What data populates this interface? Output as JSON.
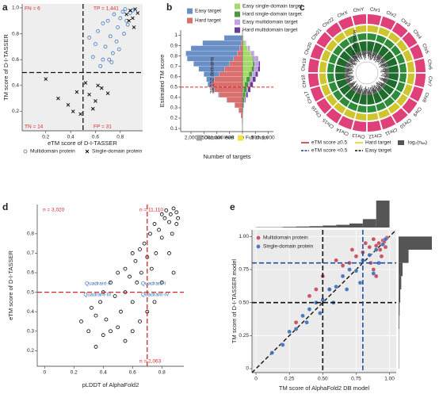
{
  "chart_data": [
    {
      "type": "scatter",
      "panel_label": "a",
      "x_label": "eTM score of D-I-TASSER",
      "y_label": "TM score of D-I-TASSER",
      "xlim": [
        0.01,
        0.98
      ],
      "ylim": [
        0.05,
        1.03
      ],
      "xticks": [
        0.2,
        0.4,
        0.6,
        0.8
      ],
      "yticks": [
        0.2,
        0.4,
        0.6,
        0.8,
        {
          "value": 1,
          "label": "1.0"
        }
      ],
      "background": "#eeeeee",
      "vlines": [
        0.5
      ],
      "hlines": [
        0.5
      ],
      "ref_color": "#111111",
      "annotations": [
        {
          "text": "FN = 6",
          "color": "#d62728"
        },
        {
          "text": "TP = 1,441",
          "color": "#d62728"
        },
        {
          "text": "TN = 14",
          "color": "#d62728"
        },
        {
          "text": "FP = 31",
          "color": "#d62728"
        }
      ],
      "series": [
        {
          "name": "Multidomain protein",
          "color": "#3b78c4",
          "marker": "circle",
          "x": [
            0.62,
            0.66,
            0.7,
            0.72,
            0.75,
            0.78,
            0.8,
            0.82,
            0.85,
            0.88,
            0.9,
            0.68,
            0.74,
            0.77,
            0.83,
            0.86,
            0.58,
            0.64,
            0.71,
            0.79,
            0.55,
            0.6,
            0.66,
            0.73,
            0.84
          ],
          "y": [
            0.82,
            0.88,
            0.9,
            0.78,
            0.95,
            0.85,
            0.92,
            0.97,
            0.9,
            0.96,
            0.98,
            0.7,
            0.65,
            0.74,
            0.8,
            0.87,
            0.62,
            0.55,
            0.6,
            0.68,
            0.77,
            0.72,
            0.6,
            0.58,
            0.99
          ]
        },
        {
          "name": "Single-domain protein",
          "color": "#000000",
          "marker": "cross",
          "x": [
            0.85,
            0.88,
            0.9,
            0.92,
            0.94,
            0.87,
            0.91,
            0.3,
            0.38,
            0.45,
            0.42,
            0.55,
            0.6,
            0.52,
            0.65,
            0.2,
            0.48,
            0.58,
            0.62,
            0.7
          ],
          "y": [
            0.95,
            0.98,
            0.92,
            0.99,
            0.96,
            0.9,
            0.85,
            0.3,
            0.25,
            0.35,
            0.2,
            0.33,
            0.28,
            0.42,
            0.38,
            0.45,
            0.18,
            0.22,
            0.4,
            0.34
          ]
        }
      ]
    },
    {
      "type": "pyramid",
      "panel_label": "b",
      "x_label": "Number of targets",
      "y_label": "Estimated TM score",
      "xlim": [
        -2400,
        1200
      ],
      "ylim": [
        0.07,
        1.05
      ],
      "xticks": [
        {
          "value": -2000,
          "label": "2,000"
        },
        {
          "value": -1500,
          "label": "1,500"
        },
        {
          "value": -1000,
          "label": "1,000"
        },
        {
          "value": -500,
          "label": "500"
        },
        0,
        500,
        {
          "value": 1000,
          "label": "1,000"
        }
      ],
      "yticks": [
        0.1,
        0.2,
        0.3,
        0.4,
        0.5,
        0.6,
        0.7,
        0.8,
        0.9,
        1
      ],
      "hlines": [
        0.5
      ],
      "ref_color": "#d62728",
      "annotations": [
        {
          "text": "28,152 domains",
          "color": "#222222"
        }
      ],
      "bins": [
        0.1,
        0.15,
        0.2,
        0.25,
        0.3,
        0.35,
        0.4,
        0.45,
        0.5,
        0.55,
        0.6,
        0.65,
        0.7,
        0.75,
        0.8,
        0.85,
        0.9,
        0.95,
        1.0
      ],
      "left_series": [
        {
          "name": "Hard target",
          "color": "#d9706e",
          "values": [
            5,
            20,
            60,
            150,
            300,
            600,
            900,
            1100,
            1200,
            1100,
            900,
            700,
            500,
            350,
            200,
            100,
            50,
            10
          ]
        },
        {
          "name": "Easy target",
          "color": "#6a8fc7",
          "values": [
            0,
            0,
            0,
            5,
            10,
            20,
            40,
            80,
            150,
            300,
            600,
            1000,
            1400,
            1800,
            2000,
            1900,
            1500,
            700
          ]
        }
      ],
      "right_series": [
        {
          "name": "Easy single-domain target",
          "color": "#a6d96a",
          "values": [
            0,
            0,
            0,
            0,
            5,
            10,
            20,
            40,
            80,
            150,
            250,
            350,
            400,
            380,
            300,
            200,
            100,
            30
          ]
        },
        {
          "name": "Hard single-domain target",
          "color": "#4a9a3c",
          "values": [
            0,
            2,
            5,
            15,
            30,
            60,
            100,
            130,
            150,
            150,
            130,
            100,
            70,
            40,
            20,
            10,
            5,
            0
          ]
        },
        {
          "name": "Easy multidomain target",
          "color": "#c2a5e0",
          "values": [
            0,
            0,
            0,
            2,
            5,
            10,
            20,
            40,
            60,
            90,
            120,
            150,
            160,
            150,
            120,
            80,
            40,
            10
          ]
        },
        {
          "name": "Hard multidomain target",
          "color": "#6a3d9a",
          "values": [
            0,
            1,
            3,
            10,
            20,
            40,
            70,
            100,
            120,
            120,
            100,
            80,
            50,
            30,
            15,
            5,
            2,
            0
          ]
        }
      ],
      "outline_legend": [
        {
          "name": "Domain level",
          "color": "#a0a0a0"
        },
        {
          "name": "Full chain",
          "color": "#f3e24a"
        }
      ]
    },
    {
      "type": "circos",
      "panel_label": "c",
      "labels": [
        "Chr1",
        "Chr2",
        "Chr3",
        "Chr4",
        "Chr5",
        "Chr6",
        "Chr7",
        "Chr8",
        "Chr9",
        "Chr10",
        "Chr11",
        "Chr12",
        "Chr13",
        "Chr14",
        "Chr15",
        "Chr16",
        "Chr17",
        "Chr18",
        "Chr19",
        "Chr20",
        "Chr21",
        "Chr22",
        "ChrX",
        "ChrY"
      ],
      "annotations": [
        {
          "text": "14,195 proteins",
          "color": "#222222"
        }
      ],
      "legend": [
        {
          "name": "eTM score ≥0.5",
          "color": "#d7263d",
          "style": "line"
        },
        {
          "name": "eTM score <0.5",
          "color": "#1f3a93",
          "style": "dash"
        },
        {
          "name": "Hard target",
          "color": "#e6d21e",
          "style": "line"
        },
        {
          "name": "Easy target",
          "color": "#111111",
          "style": "dash"
        },
        {
          "name": "log₂(nₐₐ)",
          "color": "#555555",
          "style": "box"
        }
      ]
    },
    {
      "type": "scatter",
      "panel_label": "d",
      "x_label": "pLDDT of AlphaFold2",
      "y_label": "eTM score of D-I-TASSER",
      "xlim": [
        -0.05,
        0.95
      ],
      "ylim": [
        0.12,
        0.95
      ],
      "xticks": [
        0,
        0.2,
        0.4,
        0.6,
        0.8
      ],
      "yticks": [
        0.2,
        0.3,
        0.4,
        0.5,
        0.6,
        0.7,
        0.8
      ],
      "vlines": [
        0.7
      ],
      "hlines": [
        0.5
      ],
      "ref_color": "#d62728",
      "color": "#000000",
      "marker": "circle",
      "annotations": [
        {
          "text": "n = 3,020",
          "color": "#d62728"
        },
        {
          "text": "n = 11,110",
          "color": "#d62728"
        },
        {
          "text": "n = 2,063",
          "color": "#d62728"
        },
        {
          "text": "Quadrant-II",
          "color": "#2f6db5"
        },
        {
          "text": "Quadrant-I",
          "color": "#2f6db5"
        },
        {
          "text": "Quadrant-III",
          "color": "#2f6db5"
        },
        {
          "text": "Quadrant-IV",
          "color": "#2f6db5"
        }
      ],
      "x": [
        0.25,
        0.3,
        0.32,
        0.35,
        0.38,
        0.4,
        0.42,
        0.45,
        0.48,
        0.5,
        0.52,
        0.55,
        0.55,
        0.58,
        0.6,
        0.6,
        0.62,
        0.63,
        0.65,
        0.66,
        0.68,
        0.7,
        0.72,
        0.73,
        0.75,
        0.76,
        0.78,
        0.8,
        0.8,
        0.82,
        0.83,
        0.85,
        0.86,
        0.87,
        0.88,
        0.9,
        0.9,
        0.91,
        0.4,
        0.5,
        0.6,
        0.7,
        0.75,
        0.8,
        0.85,
        0.65,
        0.55,
        0.45,
        0.35,
        0.88
      ],
      "y": [
        0.35,
        0.3,
        0.42,
        0.38,
        0.45,
        0.5,
        0.36,
        0.55,
        0.48,
        0.6,
        0.4,
        0.62,
        0.5,
        0.58,
        0.7,
        0.45,
        0.66,
        0.55,
        0.72,
        0.6,
        0.75,
        0.68,
        0.8,
        0.62,
        0.85,
        0.7,
        0.82,
        0.9,
        0.78,
        0.88,
        0.92,
        0.86,
        0.9,
        0.8,
        0.93,
        0.91,
        0.85,
        0.88,
        0.28,
        0.32,
        0.3,
        0.4,
        0.45,
        0.55,
        0.7,
        0.35,
        0.25,
        0.3,
        0.22,
        0.6
      ]
    },
    {
      "type": "scatter",
      "panel_label": "e",
      "x_label": "TM score of AlphaFold2 DB model",
      "y_label": "TM score of D-I-TASSER model",
      "xlim": [
        -0.03,
        1.05
      ],
      "ylim": [
        -0.03,
        1.05
      ],
      "xticks": [
        0,
        0.25,
        {
          "value": 0.5,
          "label": "0.50"
        },
        0.75,
        {
          "value": 1,
          "label": "1.00"
        }
      ],
      "yticks": [
        0,
        0.25,
        {
          "value": 0.5,
          "label": "0.50"
        },
        0.75,
        {
          "value": 1,
          "label": "1.00"
        }
      ],
      "background": "#ebebeb",
      "grid": true,
      "diagonal": true,
      "ref_lines": [
        {
          "value": 0.5,
          "color": "#111111"
        },
        {
          "value": 0.8,
          "color": "#1f4ea3"
        }
      ],
      "series": [
        {
          "name": "Multidomain protein",
          "color": "#c0485a",
          "marker": "dot",
          "x": [
            0.95,
            0.92,
            0.9,
            0.88,
            0.85,
            0.98,
            0.96,
            0.93,
            0.8,
            0.75,
            0.7,
            0.65,
            0.6,
            0.5,
            0.45,
            0.4,
            0.88,
            0.9,
            0.3,
            0.55,
            0.72,
            0.82,
            0.97,
            0.94,
            0.86
          ],
          "y": [
            0.97,
            0.95,
            0.93,
            0.98,
            0.92,
            0.99,
            0.96,
            0.9,
            0.88,
            0.85,
            0.8,
            0.78,
            0.82,
            0.7,
            0.6,
            0.55,
            0.75,
            0.7,
            0.35,
            0.6,
            0.9,
            0.95,
            0.92,
            0.85,
            0.8
          ]
        },
        {
          "name": "Single-domain protein",
          "color": "#3d6fb6",
          "marker": "dot",
          "x": [
            0.12,
            0.2,
            0.25,
            0.3,
            0.35,
            0.4,
            0.45,
            0.5,
            0.55,
            0.6,
            0.65,
            0.7,
            0.75,
            0.8,
            0.85,
            0.9,
            0.95,
            0.97,
            0.92,
            0.78,
            0.68,
            0.58,
            0.48,
            0.38,
            0.88
          ],
          "y": [
            0.12,
            0.18,
            0.28,
            0.3,
            0.4,
            0.45,
            0.5,
            0.52,
            0.6,
            0.62,
            0.7,
            0.75,
            0.74,
            0.82,
            0.86,
            0.9,
            0.94,
            0.98,
            0.8,
            0.65,
            0.6,
            0.5,
            0.42,
            0.35,
            0.72
          ]
        }
      ],
      "marginal_bins": [
        0,
        0.1,
        0.2,
        0.3,
        0.4,
        0.5,
        0.6,
        0.7,
        0.8,
        0.9,
        1.0
      ],
      "marginal_x_counts": [
        1,
        1,
        2,
        3,
        4,
        6,
        8,
        12,
        25,
        80
      ],
      "marginal_y_counts": [
        1,
        1,
        1,
        2,
        3,
        5,
        8,
        12,
        30,
        100
      ],
      "marginal_color": "#555555"
    }
  ]
}
